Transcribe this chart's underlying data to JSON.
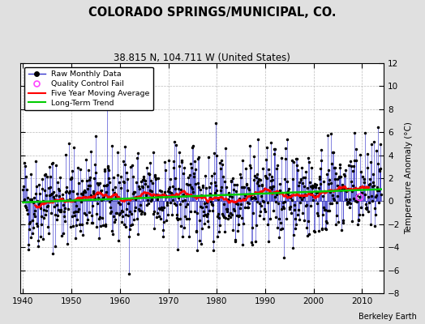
{
  "title": "COLORADO SPRINGS/MUNICIPAL, CO.",
  "subtitle": "38.815 N, 104.711 W (United States)",
  "ylabel": "Temperature Anomaly (°C)",
  "xlabel_note": "Berkeley Earth",
  "xmin": 1939.5,
  "xmax": 2014.5,
  "ymin": -8,
  "ymax": 12,
  "yticks": [
    -8,
    -6,
    -4,
    -2,
    0,
    2,
    4,
    6,
    8,
    10,
    12
  ],
  "xticks": [
    1940,
    1950,
    1960,
    1970,
    1980,
    1990,
    2000,
    2010
  ],
  "bg_color": "#e0e0e0",
  "plot_bg_color": "#ffffff",
  "raw_line_color": "#3333cc",
  "raw_marker_color": "#000000",
  "moving_avg_color": "#ff0000",
  "trend_color": "#00cc00",
  "qc_fail_color": "#ff44ff",
  "legend_labels": [
    "Raw Monthly Data",
    "Quality Control Fail",
    "Five Year Moving Average",
    "Long-Term Trend"
  ],
  "seed": 42,
  "n_years": 74,
  "start_year": 1940,
  "noise_std": 2.0,
  "trend_slope": 0.012
}
